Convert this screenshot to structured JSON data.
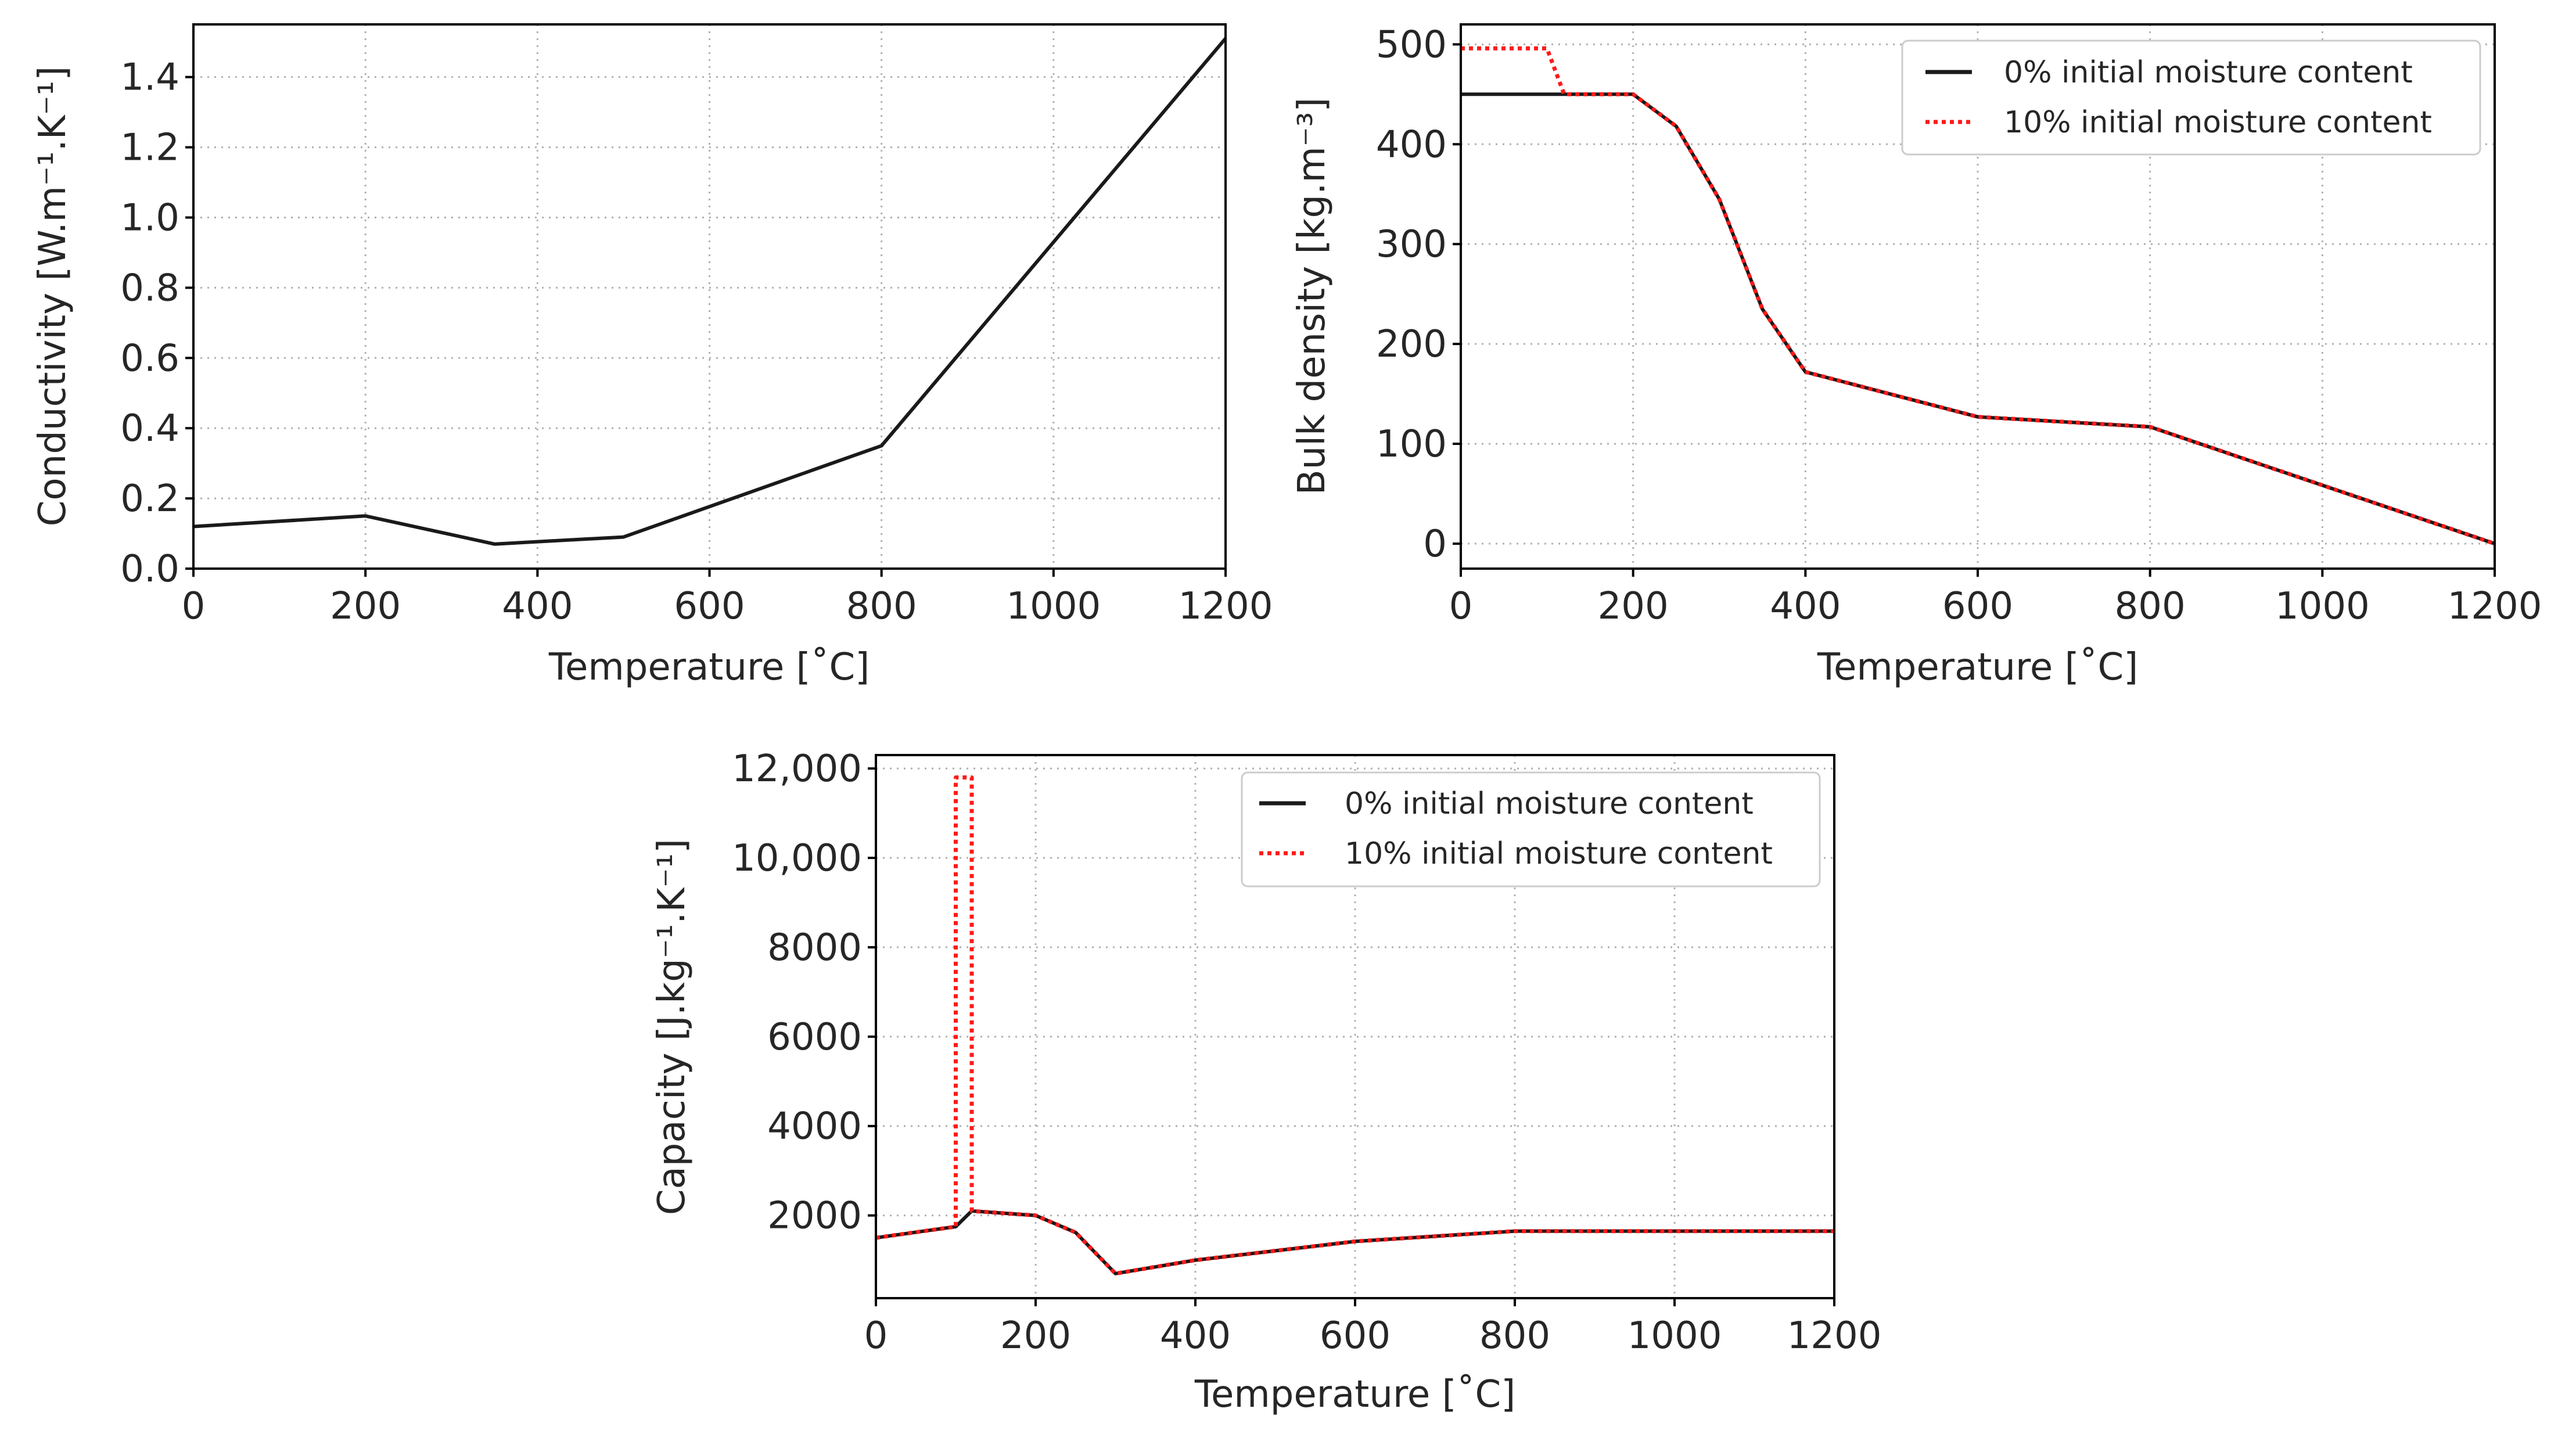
{
  "colors": {
    "black": "#1a1a1a",
    "red": "#ff1a1a"
  },
  "chart_data": [
    {
      "type": "line",
      "xlabel": "Temperature [˚C]",
      "ylabel": "Conductivity [W.m⁻¹.K⁻¹]",
      "xlim": [
        0,
        1200
      ],
      "ylim": [
        0,
        1.55
      ],
      "xticks": [
        0,
        200,
        400,
        600,
        800,
        1000,
        1200
      ],
      "xtick_labels": [
        "0",
        "200",
        "400",
        "600",
        "800",
        "1000",
        "1200"
      ],
      "yticks": [
        0,
        0.2,
        0.4,
        0.6,
        0.8,
        1.0,
        1.2,
        1.4
      ],
      "ytick_labels": [
        "0.0",
        "0.2",
        "0.4",
        "0.6",
        "0.8",
        "1.0",
        "1.2",
        "1.4"
      ],
      "grid": true,
      "legend": null,
      "series": [
        {
          "name": "conductivity",
          "style": "solid",
          "color": "#1a1a1a",
          "x": [
            0,
            200,
            350,
            500,
            800,
            1200
          ],
          "y": [
            0.12,
            0.15,
            0.07,
            0.09,
            0.35,
            1.51
          ]
        }
      ]
    },
    {
      "type": "line",
      "xlabel": "Temperature [˚C]",
      "ylabel": "Bulk density [kg.m⁻³]",
      "xlim": [
        0,
        1200
      ],
      "ylim": [
        -25,
        520
      ],
      "xticks": [
        0,
        200,
        400,
        600,
        800,
        1000,
        1200
      ],
      "xtick_labels": [
        "0",
        "200",
        "400",
        "600",
        "800",
        "1000",
        "1200"
      ],
      "yticks": [
        0,
        100,
        200,
        300,
        400,
        500
      ],
      "ytick_labels": [
        "0",
        "100",
        "200",
        "300",
        "400",
        "500"
      ],
      "grid": true,
      "legend": "top-right",
      "series": [
        {
          "name": "0% initial moisture content",
          "style": "solid",
          "color": "#1a1a1a",
          "x": [
            0,
            200,
            250,
            300,
            350,
            400,
            600,
            800,
            1200
          ],
          "y": [
            450,
            450,
            418,
            345,
            235,
            172,
            127,
            117,
            0
          ]
        },
        {
          "name": "10% initial moisture content",
          "style": "dotted",
          "color": "#ff1a1a",
          "x": [
            0,
            100,
            120,
            200,
            250,
            300,
            350,
            400,
            600,
            800,
            1200
          ],
          "y": [
            496,
            496,
            450,
            450,
            418,
            345,
            235,
            172,
            127,
            117,
            0
          ]
        }
      ]
    },
    {
      "type": "line",
      "xlabel": "Temperature [˚C]",
      "ylabel": "Capacity [J.kg⁻¹.K⁻¹]",
      "xlim": [
        0,
        1200
      ],
      "ylim": [
        150,
        12300
      ],
      "xticks": [
        0,
        200,
        400,
        600,
        800,
        1000,
        1200
      ],
      "xtick_labels": [
        "0",
        "200",
        "400",
        "600",
        "800",
        "1000",
        "1200"
      ],
      "yticks": [
        2000,
        4000,
        6000,
        8000,
        10000,
        12000
      ],
      "ytick_labels": [
        "2000",
        "4000",
        "6000",
        "8000",
        "10,000",
        "12,000"
      ],
      "grid": true,
      "legend": "top-right",
      "series": [
        {
          "name": "0% initial moisture content",
          "style": "solid",
          "color": "#1a1a1a",
          "x": [
            0,
            100,
            120,
            200,
            250,
            300,
            400,
            600,
            800,
            1200
          ],
          "y": [
            1500,
            1750,
            2100,
            2000,
            1620,
            700,
            1000,
            1420,
            1650,
            1650
          ]
        },
        {
          "name": "10% initial moisture content",
          "style": "dotted",
          "color": "#ff1a1a",
          "x": [
            0,
            100,
            100,
            120,
            120,
            200,
            250,
            300,
            400,
            600,
            800,
            1200
          ],
          "y": [
            1500,
            1750,
            11800,
            11800,
            2100,
            2000,
            1620,
            700,
            1000,
            1420,
            1650,
            1650
          ]
        }
      ]
    }
  ]
}
